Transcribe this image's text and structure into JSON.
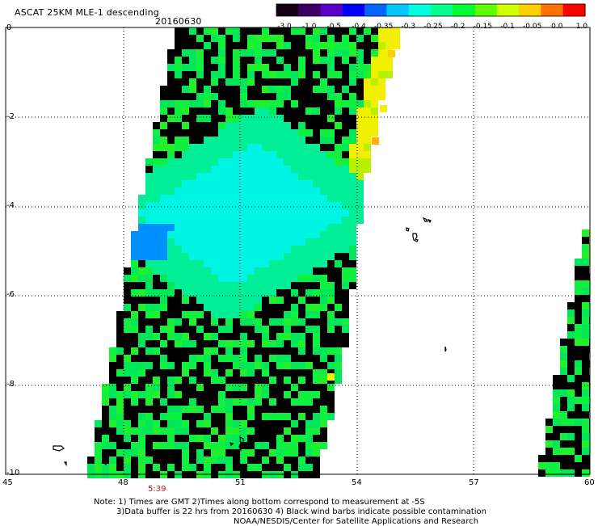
{
  "header": {
    "title": "ASCAT 25KM MLE-1 descending",
    "date": "20160630"
  },
  "colorbar": {
    "labels": [
      "-3.0",
      "-1.0",
      "-0.5",
      "-0.4",
      "-0.35",
      "-0.3",
      "-0.25",
      "-0.2",
      "-0.15",
      "-0.1",
      "-0.05",
      "0.0",
      "1.0"
    ],
    "colors": [
      "#120012",
      "#3a0066",
      "#5a00c8",
      "#0000ff",
      "#0066ff",
      "#00c8ff",
      "#00ffe0",
      "#00ff90",
      "#00ff30",
      "#60ff00",
      "#d0ff00",
      "#ffd000",
      "#ff7000",
      "#ff0000"
    ]
  },
  "axes": {
    "x_ticks": [
      "45",
      "48",
      "51",
      "54",
      "57",
      "60"
    ],
    "y_ticks": [
      "0",
      "-2",
      "-4",
      "-6",
      "-8",
      "-10"
    ]
  },
  "time_label": "5:39",
  "notes": {
    "line1": "Note: 1) Times are GMT 2)Times along bottom correspond to measurement at -5S",
    "line2": "3)Data buffer is 22 hrs from 20160630 4) Black wind barbs indicate possible contamination",
    "line3": "NOAA/NESDIS/Center for Satellite Applications and Research"
  }
}
